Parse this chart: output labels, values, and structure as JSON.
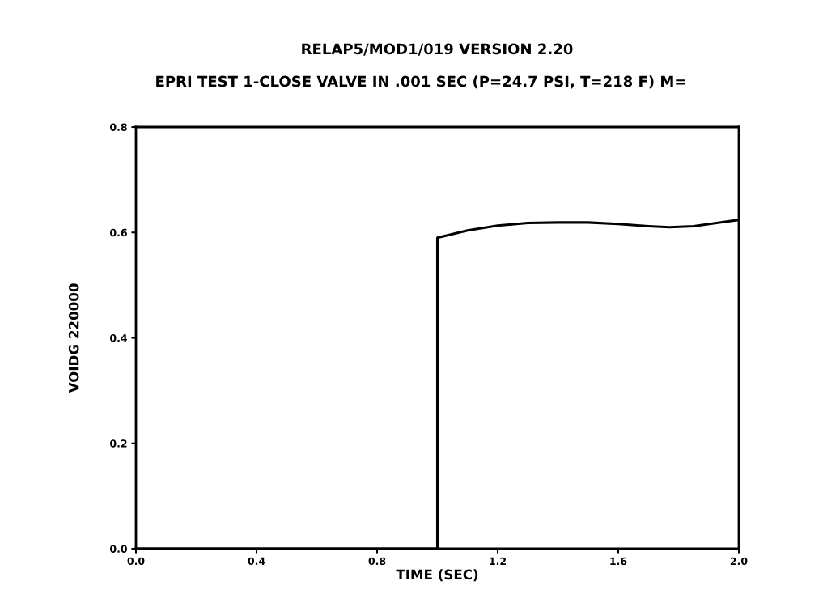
{
  "chart_data": {
    "type": "line",
    "title": "RELAP5/MOD1/019 VERSION 2.20",
    "subtitle": "EPRI TEST 1-CLOSE VALVE IN .001 SEC (P=24.7 PSI, T=218 F) M=",
    "xlabel": "TIME (SEC)",
    "ylabel": "VOIDG 220000",
    "x": [
      0,
      1.0,
      1.0,
      1.05,
      1.1,
      1.2,
      1.3,
      1.4,
      1.5,
      1.6,
      1.7,
      1.77,
      1.85,
      1.95,
      2.0
    ],
    "series": [
      {
        "color": "#000000",
        "values": [
          0,
          0,
          0.59,
          0.597,
          0.604,
          0.613,
          0.618,
          0.619,
          0.619,
          0.616,
          0.612,
          0.61,
          0.612,
          0.62,
          0.624
        ]
      }
    ],
    "xlim": [
      0,
      2.0
    ],
    "xticks": [
      {
        "value": 0,
        "label": "0.0"
      },
      0.4,
      0.8,
      1.2,
      1.6,
      {
        "value": 2,
        "label": "2.0"
      }
    ],
    "ylim": [
      0,
      0.8
    ],
    "yticks": [
      {
        "value": 0,
        "label": "0.0"
      },
      0.2,
      0.4,
      0.6,
      0.8
    ],
    "grid": false,
    "legend": false,
    "line_style": "solid",
    "marker": "none"
  }
}
